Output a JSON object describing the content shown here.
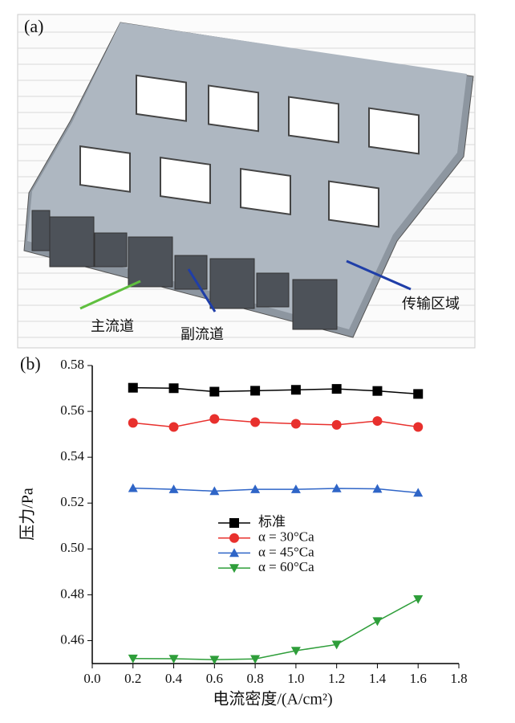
{
  "panel_a": {
    "label": "(a)",
    "annotations": [
      "主流道",
      "副流道",
      "传输区域"
    ]
  },
  "chart_data": {
    "type": "line",
    "panel_label": "(b)",
    "x_label": "电流密度/(A/cm²)",
    "y_label": "压力/Pa",
    "x": [
      0.2,
      0.4,
      0.6,
      0.8,
      1.0,
      1.2,
      1.4,
      1.6
    ],
    "series": [
      {
        "name": "标准",
        "color": "#000000",
        "marker": "square",
        "values": [
          0.5703,
          0.5701,
          0.5686,
          0.569,
          0.5694,
          0.5698,
          0.5689,
          0.5676
        ]
      },
      {
        "name": "α = 30°Ca",
        "color": "#e8302d",
        "marker": "circle",
        "values": [
          0.555,
          0.5532,
          0.5567,
          0.5553,
          0.5546,
          0.5541,
          0.5558,
          0.5532
        ]
      },
      {
        "name": "α = 45°Ca",
        "color": "#2f65c7",
        "marker": "triangle-up",
        "values": [
          0.5265,
          0.526,
          0.5252,
          0.526,
          0.526,
          0.5264,
          0.5262,
          0.5245
        ]
      },
      {
        "name": "α = 60°Ca",
        "color": "#2e9e3a",
        "marker": "triangle-down",
        "values": [
          0.4522,
          0.4521,
          0.4517,
          0.452,
          0.4556,
          0.4583,
          0.4685,
          0.4781
        ]
      }
    ],
    "xlim": [
      0,
      1.8
    ],
    "xticks": [
      {
        "value": 0,
        "label": "0.0"
      },
      0.2,
      0.4,
      0.6,
      0.8,
      {
        "value": 1,
        "label": "1.0"
      },
      1.2,
      1.4,
      1.6,
      1.8
    ],
    "ylim": [
      0.45,
      0.58
    ],
    "yticks": [
      0.46,
      0.48,
      {
        "value": 0.5,
        "label": "0.50"
      },
      0.52,
      0.54,
      0.56,
      0.58
    ]
  }
}
